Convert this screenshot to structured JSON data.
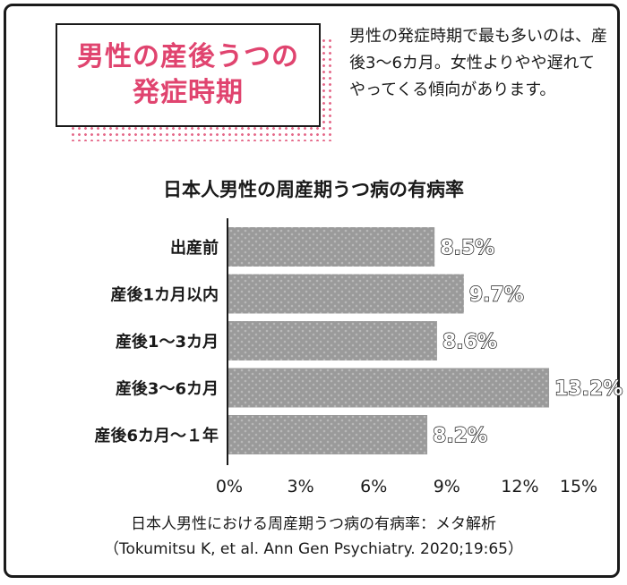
{
  "header": {
    "title_line1": "男性の産後うつの",
    "title_line2": "発症時期",
    "description": "男性の発症時期で最も多いのは、産後3〜6カ月。女性よりやや遅れてやってくる傾向があります。"
  },
  "chart_data": {
    "type": "bar",
    "orientation": "horizontal",
    "title": "日本人男性の周産期うつ病の有病率",
    "categories": [
      "出産前",
      "産後1カ月以内",
      "産後1〜3カ月",
      "産後3〜6カ月",
      "産後6カ月〜１年"
    ],
    "values": [
      8.5,
      9.7,
      8.6,
      13.2,
      8.2
    ],
    "value_labels": [
      "8.5%",
      "9.7%",
      "8.6%",
      "13.2%",
      "8.2%"
    ],
    "xlim": [
      0,
      15
    ],
    "xticks": [
      0,
      3,
      6,
      9,
      12,
      15
    ],
    "xtick_labels": [
      "0%",
      "3%",
      "6%",
      "9%",
      "12%",
      "15%"
    ],
    "grid": false,
    "bar_color": "#9a9a9a"
  },
  "caption": {
    "line1": "日本人男性における周産期うつ病の有病率：メタ解析",
    "line2": "（Tokumitsu K, et al. Ann Gen Psychiatry. 2020;19:65）"
  }
}
